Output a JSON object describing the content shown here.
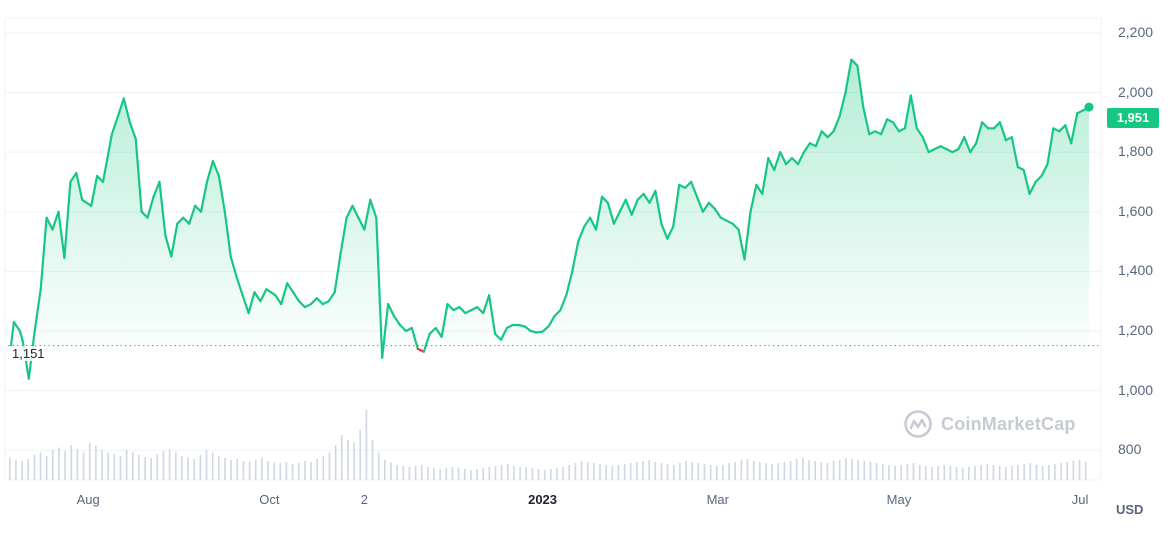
{
  "chart_data": {
    "type": "line",
    "currency_label": "USD",
    "current_price_label": "1,951",
    "current_price": 1951,
    "baseline_label": "1,151",
    "baseline": 1151,
    "ylim": [
      700,
      2250
    ],
    "y_ticks": [
      {
        "value": 800,
        "label": "800"
      },
      {
        "value": 1000,
        "label": "1,000"
      },
      {
        "value": 1200,
        "label": "1,200"
      },
      {
        "value": 1400,
        "label": "1,400"
      },
      {
        "value": 1600,
        "label": "1,600"
      },
      {
        "value": 1800,
        "label": "1,800"
      },
      {
        "value": 2000,
        "label": "2,000"
      },
      {
        "value": 2200,
        "label": "2,200"
      }
    ],
    "x_ticks": [
      {
        "date": "2022-08-01",
        "label": "Aug",
        "bold": false
      },
      {
        "date": "2022-10-01",
        "label": "Oct",
        "bold": false
      },
      {
        "date": "2022-11-02",
        "label": "2",
        "bold": false
      },
      {
        "date": "2023-01-01",
        "label": "2023",
        "bold": true
      },
      {
        "date": "2023-03-01",
        "label": "Mar",
        "bold": false
      },
      {
        "date": "2023-05-01",
        "label": "May",
        "bold": false
      },
      {
        "date": "2023-07-01",
        "label": "Jul",
        "bold": false
      }
    ],
    "x_range": [
      "2022-07-05",
      "2023-07-05"
    ],
    "series": [
      {
        "points": [
          [
            "2022-07-06",
            1151
          ],
          [
            "2022-07-07",
            1230
          ],
          [
            "2022-07-09",
            1200
          ],
          [
            "2022-07-10",
            1165
          ],
          [
            "2022-07-12",
            1040
          ],
          [
            "2022-07-14",
            1200
          ],
          [
            "2022-07-16",
            1340
          ],
          [
            "2022-07-18",
            1580
          ],
          [
            "2022-07-20",
            1540
          ],
          [
            "2022-07-22",
            1600
          ],
          [
            "2022-07-24",
            1445
          ],
          [
            "2022-07-26",
            1700
          ],
          [
            "2022-07-28",
            1730
          ],
          [
            "2022-07-30",
            1640
          ],
          [
            "2022-08-02",
            1620
          ],
          [
            "2022-08-04",
            1720
          ],
          [
            "2022-08-06",
            1700
          ],
          [
            "2022-08-09",
            1860
          ],
          [
            "2022-08-11",
            1920
          ],
          [
            "2022-08-13",
            1980
          ],
          [
            "2022-08-15",
            1900
          ],
          [
            "2022-08-17",
            1845
          ],
          [
            "2022-08-19",
            1600
          ],
          [
            "2022-08-21",
            1580
          ],
          [
            "2022-08-23",
            1650
          ],
          [
            "2022-08-25",
            1700
          ],
          [
            "2022-08-27",
            1520
          ],
          [
            "2022-08-29",
            1450
          ],
          [
            "2022-08-31",
            1560
          ],
          [
            "2022-09-02",
            1580
          ],
          [
            "2022-09-04",
            1560
          ],
          [
            "2022-09-06",
            1620
          ],
          [
            "2022-09-08",
            1600
          ],
          [
            "2022-09-10",
            1700
          ],
          [
            "2022-09-12",
            1770
          ],
          [
            "2022-09-14",
            1720
          ],
          [
            "2022-09-16",
            1600
          ],
          [
            "2022-09-18",
            1450
          ],
          [
            "2022-09-20",
            1380
          ],
          [
            "2022-09-22",
            1320
          ],
          [
            "2022-09-24",
            1260
          ],
          [
            "2022-09-26",
            1330
          ],
          [
            "2022-09-28",
            1300
          ],
          [
            "2022-09-30",
            1340
          ],
          [
            "2022-10-03",
            1320
          ],
          [
            "2022-10-05",
            1290
          ],
          [
            "2022-10-07",
            1360
          ],
          [
            "2022-10-09",
            1330
          ],
          [
            "2022-10-11",
            1300
          ],
          [
            "2022-10-13",
            1280
          ],
          [
            "2022-10-15",
            1290
          ],
          [
            "2022-10-17",
            1310
          ],
          [
            "2022-10-19",
            1290
          ],
          [
            "2022-10-21",
            1300
          ],
          [
            "2022-10-23",
            1330
          ],
          [
            "2022-10-25",
            1460
          ],
          [
            "2022-10-27",
            1580
          ],
          [
            "2022-10-29",
            1620
          ],
          [
            "2022-10-31",
            1580
          ],
          [
            "2022-11-02",
            1540
          ],
          [
            "2022-11-04",
            1640
          ],
          [
            "2022-11-06",
            1580
          ],
          [
            "2022-11-08",
            1110
          ],
          [
            "2022-11-10",
            1290
          ],
          [
            "2022-11-12",
            1250
          ],
          [
            "2022-11-14",
            1220
          ],
          [
            "2022-11-16",
            1200
          ],
          [
            "2022-11-18",
            1210
          ],
          [
            "2022-11-20",
            1140
          ],
          [
            "2022-11-22",
            1130
          ],
          [
            "2022-11-24",
            1190
          ],
          [
            "2022-11-26",
            1210
          ],
          [
            "2022-11-28",
            1180
          ],
          [
            "2022-11-30",
            1290
          ],
          [
            "2022-12-02",
            1270
          ],
          [
            "2022-12-04",
            1280
          ],
          [
            "2022-12-06",
            1260
          ],
          [
            "2022-12-08",
            1270
          ],
          [
            "2022-12-10",
            1280
          ],
          [
            "2022-12-12",
            1260
          ],
          [
            "2022-12-14",
            1320
          ],
          [
            "2022-12-16",
            1190
          ],
          [
            "2022-12-18",
            1170
          ],
          [
            "2022-12-20",
            1210
          ],
          [
            "2022-12-22",
            1220
          ],
          [
            "2022-12-24",
            1220
          ],
          [
            "2022-12-26",
            1215
          ],
          [
            "2022-12-28",
            1200
          ],
          [
            "2022-12-30",
            1195
          ],
          [
            "2023-01-01",
            1198
          ],
          [
            "2023-01-03",
            1215
          ],
          [
            "2023-01-05",
            1250
          ],
          [
            "2023-01-07",
            1270
          ],
          [
            "2023-01-09",
            1320
          ],
          [
            "2023-01-11",
            1400
          ],
          [
            "2023-01-13",
            1500
          ],
          [
            "2023-01-15",
            1550
          ],
          [
            "2023-01-17",
            1580
          ],
          [
            "2023-01-19",
            1540
          ],
          [
            "2023-01-21",
            1650
          ],
          [
            "2023-01-23",
            1630
          ],
          [
            "2023-01-25",
            1560
          ],
          [
            "2023-01-27",
            1600
          ],
          [
            "2023-01-29",
            1640
          ],
          [
            "2023-01-31",
            1590
          ],
          [
            "2023-02-02",
            1640
          ],
          [
            "2023-02-04",
            1660
          ],
          [
            "2023-02-06",
            1630
          ],
          [
            "2023-02-08",
            1670
          ],
          [
            "2023-02-10",
            1560
          ],
          [
            "2023-02-12",
            1510
          ],
          [
            "2023-02-14",
            1550
          ],
          [
            "2023-02-16",
            1690
          ],
          [
            "2023-02-18",
            1680
          ],
          [
            "2023-02-20",
            1700
          ],
          [
            "2023-02-22",
            1650
          ],
          [
            "2023-02-24",
            1600
          ],
          [
            "2023-02-26",
            1630
          ],
          [
            "2023-02-28",
            1610
          ],
          [
            "2023-03-02",
            1580
          ],
          [
            "2023-03-04",
            1570
          ],
          [
            "2023-03-06",
            1560
          ],
          [
            "2023-03-08",
            1540
          ],
          [
            "2023-03-10",
            1440
          ],
          [
            "2023-03-12",
            1600
          ],
          [
            "2023-03-14",
            1690
          ],
          [
            "2023-03-16",
            1660
          ],
          [
            "2023-03-18",
            1780
          ],
          [
            "2023-03-20",
            1740
          ],
          [
            "2023-03-22",
            1800
          ],
          [
            "2023-03-24",
            1760
          ],
          [
            "2023-03-26",
            1780
          ],
          [
            "2023-03-28",
            1760
          ],
          [
            "2023-03-30",
            1800
          ],
          [
            "2023-04-01",
            1830
          ],
          [
            "2023-04-03",
            1820
          ],
          [
            "2023-04-05",
            1870
          ],
          [
            "2023-04-07",
            1850
          ],
          [
            "2023-04-09",
            1870
          ],
          [
            "2023-04-11",
            1920
          ],
          [
            "2023-04-13",
            2000
          ],
          [
            "2023-04-15",
            2110
          ],
          [
            "2023-04-17",
            2090
          ],
          [
            "2023-04-19",
            1950
          ],
          [
            "2023-04-21",
            1860
          ],
          [
            "2023-04-23",
            1870
          ],
          [
            "2023-04-25",
            1860
          ],
          [
            "2023-04-27",
            1910
          ],
          [
            "2023-04-29",
            1900
          ],
          [
            "2023-05-01",
            1870
          ],
          [
            "2023-05-03",
            1880
          ],
          [
            "2023-05-05",
            1990
          ],
          [
            "2023-05-07",
            1880
          ],
          [
            "2023-05-09",
            1850
          ],
          [
            "2023-05-11",
            1800
          ],
          [
            "2023-05-13",
            1810
          ],
          [
            "2023-05-15",
            1820
          ],
          [
            "2023-05-17",
            1810
          ],
          [
            "2023-05-19",
            1800
          ],
          [
            "2023-05-21",
            1810
          ],
          [
            "2023-05-23",
            1850
          ],
          [
            "2023-05-25",
            1800
          ],
          [
            "2023-05-27",
            1830
          ],
          [
            "2023-05-29",
            1900
          ],
          [
            "2023-05-31",
            1880
          ],
          [
            "2023-06-02",
            1880
          ],
          [
            "2023-06-04",
            1900
          ],
          [
            "2023-06-06",
            1840
          ],
          [
            "2023-06-08",
            1850
          ],
          [
            "2023-06-10",
            1750
          ],
          [
            "2023-06-12",
            1740
          ],
          [
            "2023-06-14",
            1660
          ],
          [
            "2023-06-16",
            1700
          ],
          [
            "2023-06-18",
            1720
          ],
          [
            "2023-06-20",
            1760
          ],
          [
            "2023-06-22",
            1880
          ],
          [
            "2023-06-24",
            1870
          ],
          [
            "2023-06-26",
            1890
          ],
          [
            "2023-06-28",
            1830
          ],
          [
            "2023-06-30",
            1930
          ],
          [
            "2023-07-02",
            1940
          ],
          [
            "2023-07-04",
            1951
          ]
        ]
      }
    ],
    "volume": [
      45,
      40,
      38,
      42,
      50,
      55,
      48,
      60,
      65,
      58,
      70,
      62,
      55,
      75,
      68,
      60,
      55,
      52,
      48,
      60,
      56,
      50,
      46,
      44,
      52,
      58,
      62,
      55,
      48,
      45,
      42,
      50,
      60,
      55,
      48,
      44,
      40,
      42,
      38,
      36,
      40,
      45,
      38,
      35,
      34,
      36,
      32,
      34,
      38,
      36,
      42,
      48,
      55,
      70,
      90,
      80,
      75,
      100,
      140,
      80,
      55,
      40,
      35,
      30,
      28,
      26,
      28,
      30,
      26,
      24,
      22,
      24,
      26,
      25,
      22,
      20,
      22,
      24,
      26,
      28,
      30,
      32,
      28,
      26,
      25,
      24,
      22,
      20,
      22,
      24,
      26,
      30,
      34,
      38,
      36,
      34,
      32,
      30,
      28,
      30,
      32,
      34,
      36,
      38,
      40,
      36,
      34,
      32,
      30,
      34,
      38,
      36,
      34,
      32,
      30,
      28,
      30,
      34,
      36,
      40,
      42,
      38,
      36,
      34,
      32,
      34,
      36,
      38,
      42,
      44,
      40,
      38,
      36,
      34,
      38,
      40,
      44,
      42,
      40,
      38,
      36,
      34,
      32,
      30,
      28,
      30,
      32,
      34,
      30,
      28,
      26,
      28,
      30,
      28,
      26,
      24,
      26,
      28,
      30,
      32,
      30,
      28,
      26,
      28,
      30,
      32,
      34,
      30,
      28,
      30,
      32,
      34,
      36,
      38,
      40,
      36
    ]
  },
  "watermark": {
    "text": "CoinMarketCap"
  },
  "colors": {
    "up_line": "#16c784",
    "down_line": "#ea3943",
    "grid": "#eff2f5",
    "volume": "#cfd6e4",
    "axis_text": "#58667e"
  }
}
